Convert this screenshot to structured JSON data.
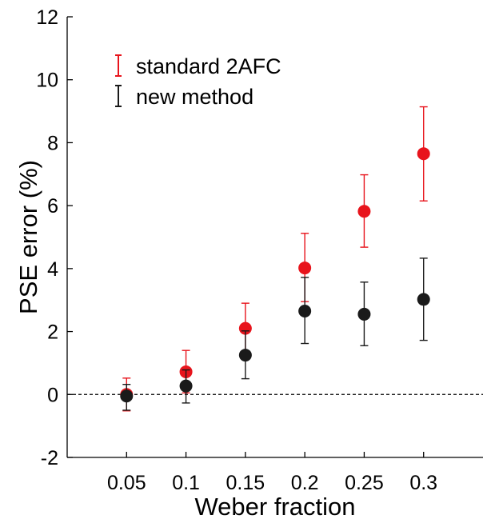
{
  "chart_data": {
    "type": "scatter",
    "title": "",
    "xlabel": "Weber fraction",
    "ylabel": "PSE error (%)",
    "x": [
      0.05,
      0.1,
      0.15,
      0.2,
      0.25,
      0.3
    ],
    "x_tick_labels": [
      "0.05",
      "0.1",
      "0.15",
      "0.2",
      "0.25",
      "0.3"
    ],
    "xlim": [
      0.0,
      0.35
    ],
    "ylim": [
      -2,
      12
    ],
    "y_ticks": [
      -2,
      0,
      2,
      4,
      6,
      8,
      10,
      12
    ],
    "y_tick_labels": [
      "-2",
      "0",
      "2",
      "4",
      "6",
      "8",
      "10",
      "12"
    ],
    "reference_line": {
      "y": 0,
      "style": "dashed"
    },
    "grid": false,
    "legend_position": "top-left",
    "series": [
      {
        "name": "standard 2AFC",
        "color": "#e8141c",
        "y": [
          0.0,
          0.72,
          2.1,
          4.02,
          5.82,
          7.65
        ],
        "err_low": [
          -0.52,
          0.05,
          1.3,
          2.95,
          4.68,
          6.15
        ],
        "err_high": [
          0.52,
          1.4,
          2.9,
          5.12,
          6.98,
          9.14
        ]
      },
      {
        "name": "new method",
        "color": "#1a1a1a",
        "y": [
          -0.05,
          0.27,
          1.25,
          2.65,
          2.55,
          3.02
        ],
        "err_low": [
          -0.5,
          -0.27,
          0.5,
          1.62,
          1.55,
          1.72
        ],
        "err_high": [
          0.32,
          0.78,
          2.02,
          3.72,
          3.57,
          4.33
        ]
      }
    ]
  }
}
